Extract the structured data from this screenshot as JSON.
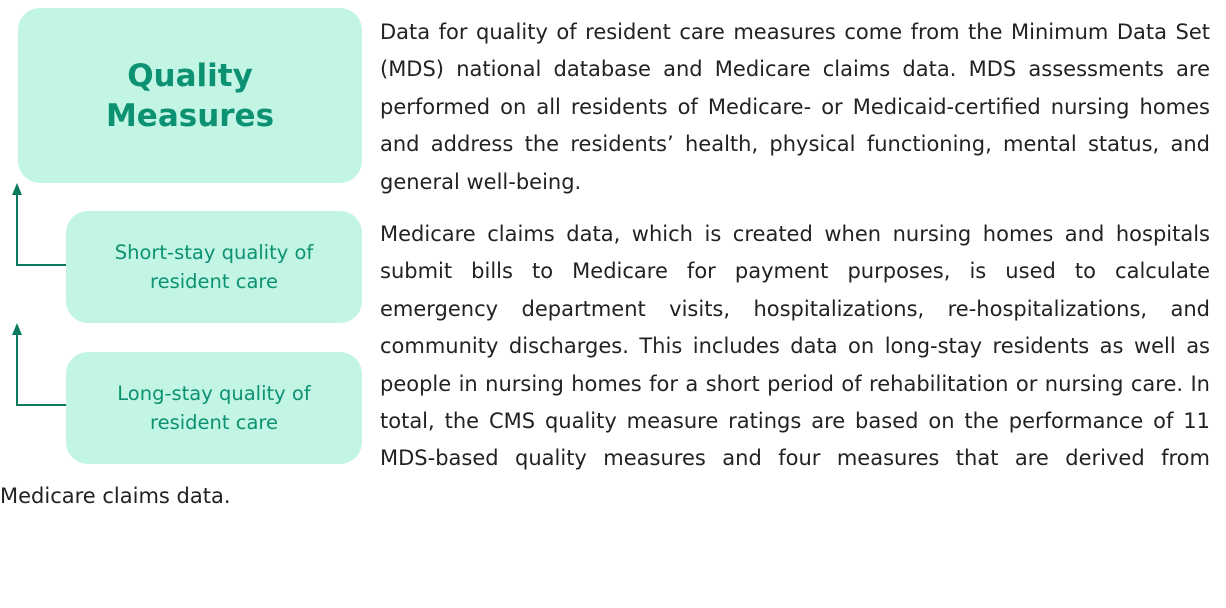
{
  "diagram": {
    "title": "Quality Measures",
    "boxes": [
      "Short-stay quality of resident care",
      "Long-stay quality of resident care"
    ]
  },
  "paragraphs": [
    "Data for quality of resident care measures come from the Minimum Data Set (MDS) national database and Medicare claims data. MDS assessments are performed on all residents of Medicare- or Medicaid-certified nursing homes and address the residents’ health, physical functioning, mental status, and general well-being.",
    "Medicare claims data, which is created when nursing homes and hospitals submit bills to Medicare for payment purposes, is used to calculate emergency department visits, hospitalizations, re-hospitalizations, and community discharges. This includes data on long-stay residents as well as people in nursing homes for a short period of rehabilitation or nursing care. In total, the CMS quality measure ratings are based on the performance of 11 MDS-based quality measures and four measures that are derived from Medicare claims data."
  ]
}
